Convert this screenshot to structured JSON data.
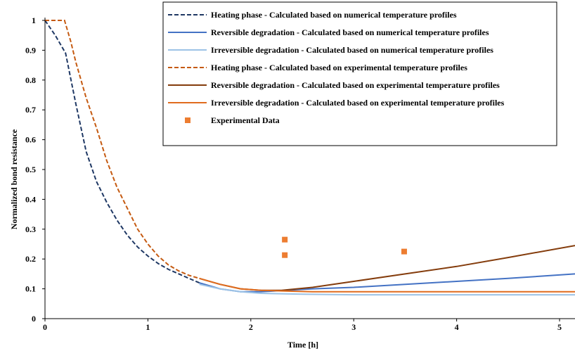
{
  "chart_data": {
    "type": "line",
    "title": "",
    "xlabel": "Time [h]",
    "ylabel": "Normalized bond resistance",
    "xlim": [
      0,
      5.15
    ],
    "ylim": [
      0,
      1
    ],
    "x_ticks": [
      0,
      1,
      2,
      3,
      4,
      5
    ],
    "y_ticks": [
      0,
      0.1,
      0.2,
      0.3,
      0.4,
      0.5,
      0.6,
      0.7,
      0.8,
      0.9,
      1
    ],
    "grid": false,
    "legend_position": "top-right",
    "series": [
      {
        "name": "Heating phase - Calculated based on numerical temperature profiles",
        "color": "#1f3864",
        "dash": "dashed",
        "x": [
          0,
          0.1,
          0.2,
          0.3,
          0.4,
          0.5,
          0.6,
          0.7,
          0.8,
          0.9,
          1.0,
          1.1,
          1.2,
          1.3,
          1.4,
          1.5
        ],
        "y": [
          1.0,
          0.95,
          0.89,
          0.72,
          0.56,
          0.46,
          0.39,
          0.33,
          0.28,
          0.24,
          0.21,
          0.185,
          0.165,
          0.15,
          0.135,
          0.12
        ]
      },
      {
        "name": "Reversible degradation - Calculated based on numerical temperature profiles",
        "color": "#4472c4",
        "dash": "solid",
        "x": [
          1.5,
          1.7,
          1.9,
          2.1,
          2.33,
          2.6,
          3.0,
          3.5,
          4.0,
          4.5,
          5.15
        ],
        "y": [
          0.12,
          0.1,
          0.09,
          0.09,
          0.095,
          0.1,
          0.105,
          0.115,
          0.125,
          0.135,
          0.15
        ]
      },
      {
        "name": "Irreversible degradation - Calculated based on numerical temperature profiles",
        "color": "#9dc3e6",
        "dash": "solid",
        "x": [
          1.5,
          1.7,
          1.9,
          2.1,
          2.5,
          3.0,
          4.0,
          5.15
        ],
        "y": [
          0.115,
          0.1,
          0.09,
          0.085,
          0.082,
          0.08,
          0.08,
          0.08
        ]
      },
      {
        "name": "Heating phase - Calculated based on experimental temperature profiles",
        "color": "#c55a11",
        "dash": "dashed",
        "x": [
          0,
          0.1,
          0.19,
          0.25,
          0.3,
          0.4,
          0.5,
          0.6,
          0.7,
          0.8,
          0.9,
          1.0,
          1.1,
          1.2,
          1.3,
          1.4,
          1.5
        ],
        "y": [
          1.0,
          1.0,
          1.0,
          0.93,
          0.86,
          0.74,
          0.64,
          0.53,
          0.44,
          0.37,
          0.3,
          0.25,
          0.21,
          0.18,
          0.16,
          0.145,
          0.135
        ]
      },
      {
        "name": "Reversible degradation - Calculated based on experimental temperature profiles",
        "color": "#843c0c",
        "dash": "solid",
        "x": [
          1.5,
          1.7,
          1.9,
          2.1,
          2.3,
          2.6,
          3.0,
          3.5,
          4.0,
          4.5,
          5.15
        ],
        "y": [
          0.135,
          0.115,
          0.1,
          0.095,
          0.095,
          0.105,
          0.125,
          0.15,
          0.175,
          0.205,
          0.245
        ]
      },
      {
        "name": "Irreversible degradation - Calculated based on experimental temperature profiles",
        "color": "#e06c1e",
        "dash": "solid",
        "x": [
          1.5,
          1.7,
          1.9,
          2.1,
          2.3,
          2.6,
          3.0,
          4.0,
          5.15
        ],
        "y": [
          0.135,
          0.115,
          0.1,
          0.095,
          0.093,
          0.09,
          0.09,
          0.09,
          0.09
        ]
      }
    ],
    "points": {
      "name": "Experimental Data",
      "color": "#ed7d31",
      "marker": "square",
      "x": [
        2.33,
        2.33,
        3.49
      ],
      "y": [
        0.265,
        0.213,
        0.225
      ]
    }
  }
}
